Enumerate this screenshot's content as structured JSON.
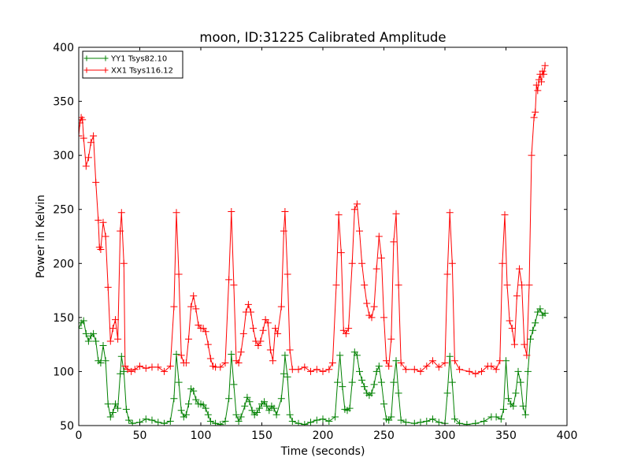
{
  "chart_data": {
    "type": "line",
    "title": "moon, ID:31225 Calibrated Amplitude",
    "xlabel": "Time (seconds)",
    "ylabel": "Power in Kelvin",
    "xlim": [
      0,
      400
    ],
    "ylim": [
      50,
      400
    ],
    "xticks": [
      0,
      50,
      100,
      150,
      200,
      250,
      300,
      350,
      400
    ],
    "yticks": [
      50,
      100,
      150,
      200,
      250,
      300,
      350,
      400
    ],
    "grid": false,
    "legend_position": "top-left",
    "marker": "+",
    "series": [
      {
        "name": "YY1 Tsys82.10",
        "color": "#008000",
        "points": [
          [
            0,
            140
          ],
          [
            2,
            145
          ],
          [
            4,
            147
          ],
          [
            6,
            135
          ],
          [
            8,
            128
          ],
          [
            10,
            133
          ],
          [
            12,
            135
          ],
          [
            14,
            128
          ],
          [
            16,
            110
          ],
          [
            18,
            108
          ],
          [
            20,
            124
          ],
          [
            22,
            110
          ],
          [
            24,
            70
          ],
          [
            26,
            58
          ],
          [
            28,
            62
          ],
          [
            30,
            70
          ],
          [
            32,
            66
          ],
          [
            34,
            98
          ],
          [
            35,
            114
          ],
          [
            37,
            100
          ],
          [
            39,
            65
          ],
          [
            41,
            55
          ],
          [
            44,
            52
          ],
          [
            50,
            53
          ],
          [
            55,
            56
          ],
          [
            60,
            55
          ],
          [
            65,
            53
          ],
          [
            70,
            52
          ],
          [
            75,
            54
          ],
          [
            78,
            75
          ],
          [
            80,
            116
          ],
          [
            82,
            90
          ],
          [
            84,
            64
          ],
          [
            86,
            58
          ],
          [
            88,
            60
          ],
          [
            90,
            70
          ],
          [
            92,
            84
          ],
          [
            94,
            82
          ],
          [
            96,
            74
          ],
          [
            98,
            70
          ],
          [
            100,
            70
          ],
          [
            102,
            69
          ],
          [
            104,
            66
          ],
          [
            106,
            60
          ],
          [
            108,
            54
          ],
          [
            112,
            52
          ],
          [
            116,
            51
          ],
          [
            120,
            54
          ],
          [
            123,
            75
          ],
          [
            125,
            116
          ],
          [
            127,
            88
          ],
          [
            129,
            60
          ],
          [
            131,
            54
          ],
          [
            133,
            58
          ],
          [
            136,
            68
          ],
          [
            138,
            76
          ],
          [
            140,
            72
          ],
          [
            142,
            64
          ],
          [
            144,
            60
          ],
          [
            146,
            62
          ],
          [
            148,
            66
          ],
          [
            150,
            70
          ],
          [
            152,
            72
          ],
          [
            154,
            68
          ],
          [
            156,
            64
          ],
          [
            158,
            68
          ],
          [
            160,
            66
          ],
          [
            162,
            60
          ],
          [
            166,
            75
          ],
          [
            168,
            98
          ],
          [
            169,
            115
          ],
          [
            171,
            95
          ],
          [
            173,
            60
          ],
          [
            175,
            54
          ],
          [
            180,
            52
          ],
          [
            185,
            51
          ],
          [
            190,
            53
          ],
          [
            195,
            55
          ],
          [
            200,
            56
          ],
          [
            205,
            54
          ],
          [
            210,
            58
          ],
          [
            212,
            90
          ],
          [
            214,
            115
          ],
          [
            216,
            86
          ],
          [
            218,
            65
          ],
          [
            220,
            64
          ],
          [
            222,
            66
          ],
          [
            224,
            90
          ],
          [
            226,
            118
          ],
          [
            228,
            115
          ],
          [
            230,
            100
          ],
          [
            232,
            92
          ],
          [
            234,
            86
          ],
          [
            236,
            80
          ],
          [
            238,
            78
          ],
          [
            240,
            80
          ],
          [
            242,
            88
          ],
          [
            244,
            100
          ],
          [
            246,
            105
          ],
          [
            248,
            90
          ],
          [
            250,
            70
          ],
          [
            252,
            56
          ],
          [
            254,
            55
          ],
          [
            256,
            58
          ],
          [
            258,
            90
          ],
          [
            260,
            110
          ],
          [
            262,
            80
          ],
          [
            264,
            55
          ],
          [
            268,
            53
          ],
          [
            275,
            52
          ],
          [
            280,
            53
          ],
          [
            285,
            54
          ],
          [
            290,
            56
          ],
          [
            295,
            53
          ],
          [
            300,
            52
          ],
          [
            302,
            80
          ],
          [
            304,
            114
          ],
          [
            306,
            90
          ],
          [
            308,
            56
          ],
          [
            312,
            52
          ],
          [
            318,
            51
          ],
          [
            325,
            52
          ],
          [
            332,
            54
          ],
          [
            338,
            58
          ],
          [
            342,
            58
          ],
          [
            346,
            56
          ],
          [
            348,
            65
          ],
          [
            350,
            110
          ],
          [
            352,
            75
          ],
          [
            354,
            70
          ],
          [
            356,
            68
          ],
          [
            358,
            80
          ],
          [
            360,
            100
          ],
          [
            362,
            90
          ],
          [
            364,
            68
          ],
          [
            366,
            60
          ],
          [
            368,
            100
          ],
          [
            370,
            130
          ],
          [
            372,
            138
          ],
          [
            374,
            145
          ],
          [
            376,
            155
          ],
          [
            378,
            158
          ],
          [
            380,
            152
          ],
          [
            382,
            154
          ]
        ]
      },
      {
        "name": "XX1 Tsys116.12",
        "color": "#ff0000",
        "points": [
          [
            0,
            318
          ],
          [
            1,
            330
          ],
          [
            2,
            335
          ],
          [
            3,
            333
          ],
          [
            4,
            316
          ],
          [
            6,
            290
          ],
          [
            8,
            298
          ],
          [
            10,
            312
          ],
          [
            12,
            318
          ],
          [
            14,
            275
          ],
          [
            16,
            240
          ],
          [
            17,
            215
          ],
          [
            18,
            213
          ],
          [
            20,
            238
          ],
          [
            22,
            225
          ],
          [
            24,
            178
          ],
          [
            26,
            128
          ],
          [
            28,
            140
          ],
          [
            30,
            148
          ],
          [
            32,
            130
          ],
          [
            34,
            230
          ],
          [
            35,
            247
          ],
          [
            37,
            200
          ],
          [
            38,
            105
          ],
          [
            40,
            102
          ],
          [
            43,
            100
          ],
          [
            46,
            102
          ],
          [
            50,
            105
          ],
          [
            55,
            103
          ],
          [
            60,
            104
          ],
          [
            65,
            104
          ],
          [
            70,
            100
          ],
          [
            75,
            105
          ],
          [
            78,
            160
          ],
          [
            80,
            247
          ],
          [
            82,
            190
          ],
          [
            84,
            115
          ],
          [
            86,
            108
          ],
          [
            88,
            108
          ],
          [
            90,
            130
          ],
          [
            92,
            160
          ],
          [
            94,
            170
          ],
          [
            96,
            158
          ],
          [
            98,
            143
          ],
          [
            100,
            140
          ],
          [
            102,
            140
          ],
          [
            104,
            137
          ],
          [
            106,
            125
          ],
          [
            108,
            112
          ],
          [
            110,
            105
          ],
          [
            112,
            104
          ],
          [
            116,
            104
          ],
          [
            120,
            108
          ],
          [
            123,
            185
          ],
          [
            125,
            248
          ],
          [
            127,
            180
          ],
          [
            129,
            110
          ],
          [
            131,
            108
          ],
          [
            133,
            118
          ],
          [
            135,
            135
          ],
          [
            137,
            155
          ],
          [
            139,
            162
          ],
          [
            141,
            155
          ],
          [
            143,
            140
          ],
          [
            145,
            128
          ],
          [
            147,
            124
          ],
          [
            149,
            128
          ],
          [
            151,
            138
          ],
          [
            153,
            148
          ],
          [
            155,
            145
          ],
          [
            157,
            120
          ],
          [
            159,
            110
          ],
          [
            161,
            140
          ],
          [
            163,
            135
          ],
          [
            166,
            160
          ],
          [
            168,
            230
          ],
          [
            169,
            248
          ],
          [
            171,
            190
          ],
          [
            173,
            120
          ],
          [
            175,
            102
          ],
          [
            180,
            102
          ],
          [
            185,
            104
          ],
          [
            190,
            100
          ],
          [
            195,
            102
          ],
          [
            200,
            100
          ],
          [
            205,
            102
          ],
          [
            208,
            108
          ],
          [
            211,
            180
          ],
          [
            213,
            245
          ],
          [
            215,
            210
          ],
          [
            217,
            138
          ],
          [
            219,
            135
          ],
          [
            221,
            140
          ],
          [
            224,
            200
          ],
          [
            226,
            250
          ],
          [
            228,
            255
          ],
          [
            230,
            230
          ],
          [
            232,
            200
          ],
          [
            234,
            180
          ],
          [
            236,
            163
          ],
          [
            238,
            152
          ],
          [
            240,
            150
          ],
          [
            242,
            160
          ],
          [
            244,
            195
          ],
          [
            246,
            225
          ],
          [
            248,
            205
          ],
          [
            250,
            150
          ],
          [
            252,
            110
          ],
          [
            254,
            105
          ],
          [
            256,
            130
          ],
          [
            258,
            220
          ],
          [
            260,
            246
          ],
          [
            262,
            180
          ],
          [
            264,
            108
          ],
          [
            268,
            102
          ],
          [
            275,
            102
          ],
          [
            280,
            100
          ],
          [
            285,
            105
          ],
          [
            290,
            110
          ],
          [
            295,
            104
          ],
          [
            300,
            108
          ],
          [
            302,
            190
          ],
          [
            304,
            247
          ],
          [
            306,
            200
          ],
          [
            308,
            110
          ],
          [
            312,
            102
          ],
          [
            320,
            100
          ],
          [
            325,
            98
          ],
          [
            330,
            100
          ],
          [
            335,
            105
          ],
          [
            338,
            105
          ],
          [
            342,
            102
          ],
          [
            345,
            110
          ],
          [
            347,
            200
          ],
          [
            349,
            245
          ],
          [
            351,
            180
          ],
          [
            353,
            147
          ],
          [
            355,
            140
          ],
          [
            357,
            125
          ],
          [
            359,
            170
          ],
          [
            361,
            195
          ],
          [
            363,
            180
          ],
          [
            365,
            125
          ],
          [
            367,
            115
          ],
          [
            369,
            180
          ],
          [
            371,
            300
          ],
          [
            373,
            335
          ],
          [
            374,
            340
          ],
          [
            375,
            365
          ],
          [
            376,
            360
          ],
          [
            377,
            370
          ],
          [
            378,
            375
          ],
          [
            379,
            368
          ],
          [
            380,
            378
          ],
          [
            381,
            375
          ],
          [
            382,
            383
          ]
        ]
      }
    ]
  }
}
